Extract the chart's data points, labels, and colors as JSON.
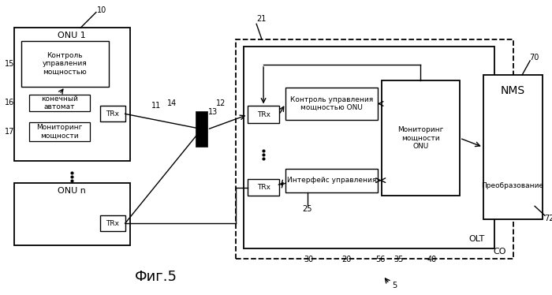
{
  "background": "#ffffff",
  "fig_label": "Фиг.5",
  "labels": {
    "onu1": "ONU 1",
    "onu_n": "ONU n",
    "onu1_block1": "Контроль\nуправления\nмощностью",
    "onu1_block2": "конечный\nавтомат",
    "onu1_block3": "Мониторинг\nмощности",
    "onu1_trx": "TRx",
    "onu_n_trx": "TRx",
    "olt_trx1": "TRx",
    "olt_trx2": "TRx",
    "olt_ctrl": "Контроль управления\nмощностью ONU",
    "olt_iface": "Интерфейс управления",
    "olt_monitor": "Мониторинг\nмощности\nONU",
    "olt_label": "OLT",
    "co_label": "CO",
    "nms_label": "NMS",
    "nms_sub": "Преобразование",
    "ref5": "5",
    "ref10": "10",
    "ref11": "11",
    "ref12": "12",
    "ref13": "13",
    "ref14": "14",
    "ref15": "15",
    "ref16": "16",
    "ref17": "17",
    "ref20": "20",
    "ref21": "21",
    "ref25": "25",
    "ref30": "30",
    "ref35": "35",
    "ref40": "40",
    "ref56": "56",
    "ref70": "70",
    "ref72": "72"
  }
}
